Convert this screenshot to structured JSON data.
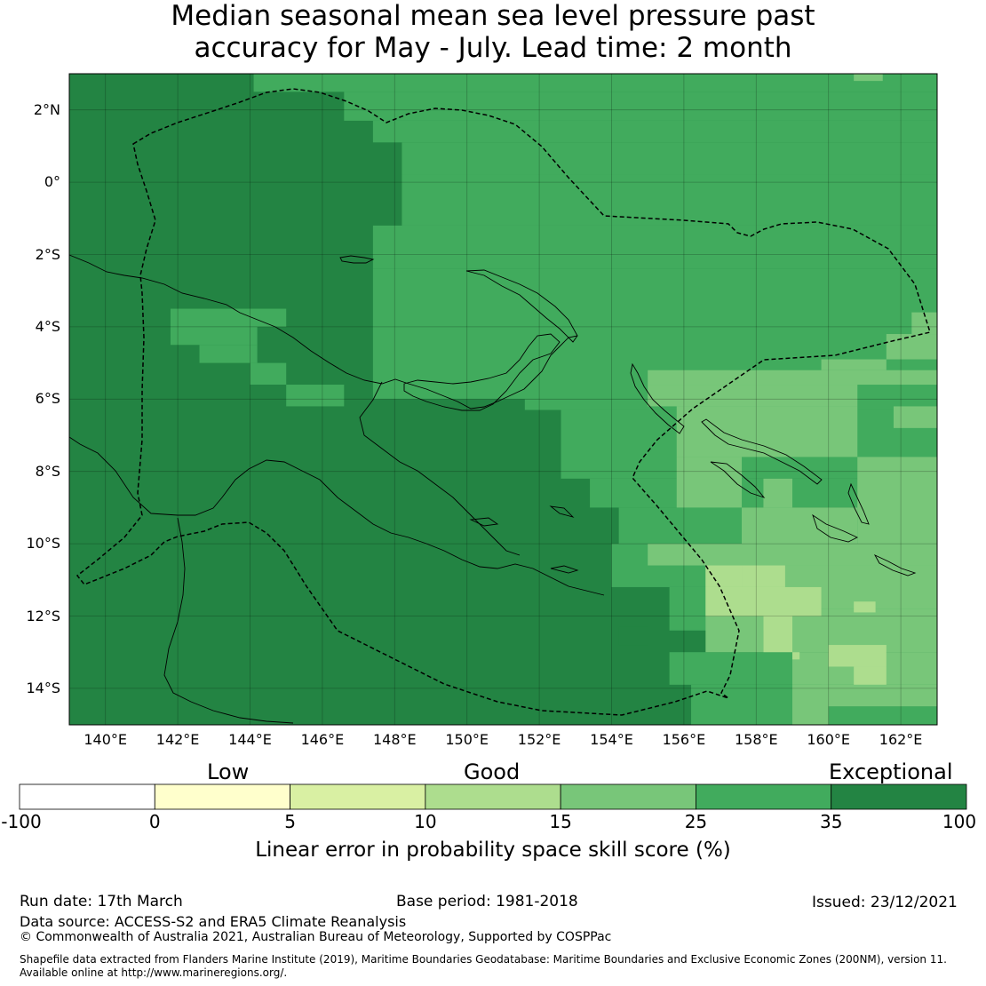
{
  "title": {
    "line1": "Median seasonal mean sea level pressure past",
    "line2": "accuracy for May - July. Lead time: 2 month"
  },
  "map": {
    "lon_range": [
      139,
      163
    ],
    "lat_range": [
      -15,
      3
    ],
    "lat_ticks": [
      {
        "value": 2,
        "label": "2°N"
      },
      {
        "value": 0,
        "label": "0°"
      },
      {
        "value": -2,
        "label": "2°S"
      },
      {
        "value": -4,
        "label": "4°S"
      },
      {
        "value": -6,
        "label": "6°S"
      },
      {
        "value": -8,
        "label": "8°S"
      },
      {
        "value": -10,
        "label": "10°S"
      },
      {
        "value": -12,
        "label": "12°S"
      },
      {
        "value": -14,
        "label": "14°S"
      }
    ],
    "lon_ticks": [
      {
        "value": 140,
        "label": "140°E"
      },
      {
        "value": 142,
        "label": "142°E"
      },
      {
        "value": 144,
        "label": "144°E"
      },
      {
        "value": 146,
        "label": "146°E"
      },
      {
        "value": 148,
        "label": "148°E"
      },
      {
        "value": 150,
        "label": "150°E"
      },
      {
        "value": 152,
        "label": "152°E"
      },
      {
        "value": 154,
        "label": "154°E"
      },
      {
        "value": 156,
        "label": "156°E"
      },
      {
        "value": 158,
        "label": "158°E"
      },
      {
        "value": 160,
        "label": "160°E"
      },
      {
        "value": 162,
        "label": "162°E"
      }
    ],
    "gridlines": true
  },
  "legend": {
    "categories": [
      {
        "label": "Low"
      },
      {
        "label": "Good"
      },
      {
        "label": "Exceptional"
      }
    ],
    "bins": [
      {
        "from": -100,
        "to": 0,
        "color": "#ffffff"
      },
      {
        "from": 0,
        "to": 5,
        "color": "#ffffcc"
      },
      {
        "from": 5,
        "to": 10,
        "color": "#d9f0a3"
      },
      {
        "from": 10,
        "to": 15,
        "color": "#addd8e"
      },
      {
        "from": 15,
        "to": 25,
        "color": "#78c679"
      },
      {
        "from": 25,
        "to": 35,
        "color": "#41ab5d"
      },
      {
        "from": 35,
        "to": 100,
        "color": "#238443"
      }
    ],
    "tick_labels": [
      "-100",
      "0",
      "5",
      "10",
      "15",
      "25",
      "35",
      "100"
    ],
    "title": "Linear error in probability space skill score (%)"
  },
  "footer": {
    "run_date": "Run date: 17th March",
    "base_period": "Base period: 1981-2018",
    "issued": "Issued: 23/12/2021",
    "data_source": "Data source: ACCESS-S2 and ERA5 Climate Reanalysis",
    "copyright": "© Commonwealth of Australia 2021, Australian Bureau of Meteorology, Supported by COSPPac",
    "shapefile_line1": "Shapefile data extracted from Flanders Marine Institute (2019), Maritime Boundaries Geodatabase: Maritime Boundaries and Exclusive Economic Zones (200NM), version 11.",
    "shapefile_line2": "Available online at http://www.marineregions.org/."
  }
}
